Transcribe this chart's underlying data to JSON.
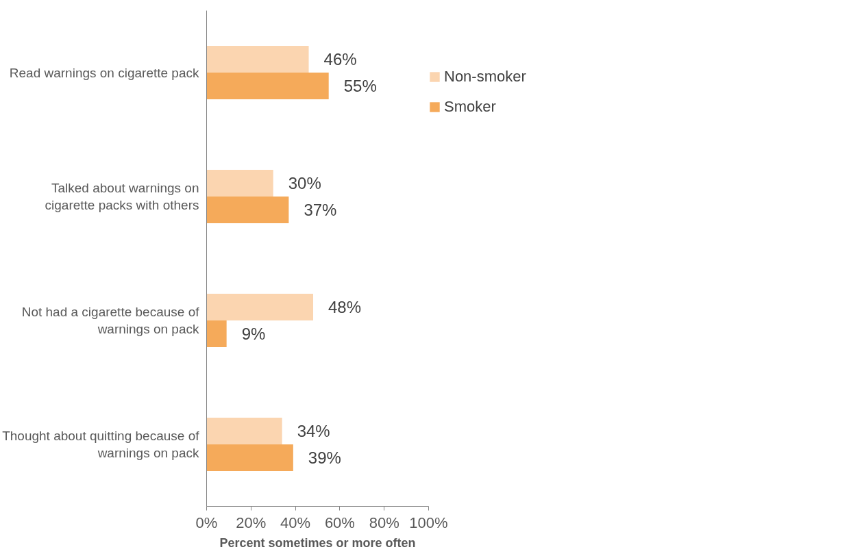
{
  "chart_data": {
    "type": "bar",
    "orientation": "horizontal",
    "xlabel": "Percent sometimes or more often",
    "categories": [
      "Read warnings on cigarette pack",
      "Talked about warnings on cigarette packs with others",
      "Not had a cigarette because of warnings on pack",
      "Thought about quitting because of warnings on pack"
    ],
    "series": [
      {
        "name": "Non-smoker",
        "color": "#fbd5b0",
        "values": [
          46,
          30,
          48,
          34
        ],
        "value_labels": [
          "46%",
          "30%",
          "48%",
          "34%"
        ]
      },
      {
        "name": "Smoker",
        "color": "#f5aa5a",
        "values": [
          55,
          37,
          9,
          39
        ],
        "value_labels": [
          "55%",
          "37%",
          "9%",
          "39%"
        ]
      }
    ],
    "xlim": [
      0,
      100
    ],
    "xticks": [
      {
        "value": 0,
        "label": "0%"
      },
      {
        "value": 20,
        "label": "20%"
      },
      {
        "value": 40,
        "label": "40%"
      },
      {
        "value": 60,
        "label": "60%"
      },
      {
        "value": 80,
        "label": "80%"
      },
      {
        "value": 100,
        "label": "100%"
      }
    ],
    "grid": false,
    "legend": "right"
  }
}
